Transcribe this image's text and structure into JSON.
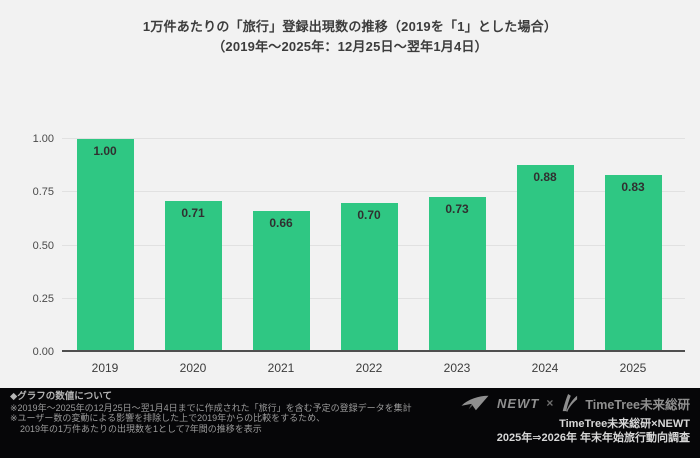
{
  "title": {
    "line1": "1万件あたりの「旅行」登録出現数の推移（2019を「1」とした場合）",
    "line2": "（2019年〜2025年：12月25日〜翌年1月4日）"
  },
  "chart_data": {
    "type": "bar",
    "categories": [
      "2019",
      "2020",
      "2021",
      "2022",
      "2023",
      "2024",
      "2025"
    ],
    "values": [
      1.0,
      0.71,
      0.66,
      0.7,
      0.73,
      0.88,
      0.83
    ],
    "value_labels": [
      "1.00",
      "0.71",
      "0.66",
      "0.70",
      "0.73",
      "0.88",
      "0.83"
    ],
    "title": "1万件あたりの「旅行」登録出現数の推移（2019を「1」とした場合）",
    "subtitle": "（2019年〜2025年：12月25日〜翌年1月4日）",
    "xlabel": "",
    "ylabel": "",
    "ylim": [
      0,
      1.0
    ],
    "yticks": [
      {
        "value": 0.0,
        "label": "0.00"
      },
      {
        "value": 0.25,
        "label": "0.25"
      },
      {
        "value": 0.5,
        "label": "0.50"
      },
      {
        "value": 0.75,
        "label": "0.75"
      },
      {
        "value": 1.0,
        "label": "1.00"
      }
    ],
    "grid": true,
    "legend": "none",
    "bar_color": "#2fc783",
    "label_color": "#303030"
  },
  "footer": {
    "notes": {
      "heading": "◆グラフの数値について",
      "line1": "※2019年〜2025年の12月25日〜翌1月4日までに作成された「旅行」を含む予定の登録データを集計",
      "line2": "※ユーザー数の変動による影響を排除した上で2019年からの比較をするため、",
      "line3": "2019年の1万件あたりの出現数を1として7年間の推移を表示"
    },
    "branding": {
      "newt_label": "NEWT",
      "separator": "×",
      "timetree_label": "TimeTree未来総研",
      "credit_line": "TimeTree未来総研×NEWT",
      "survey_line": "2025年⇒2026年 年末年始旅行動向調査"
    }
  },
  "colors": {
    "background": "#f2f2f2",
    "bar": "#2fc783",
    "footer_background": "#060608",
    "gridline": "#e1e1e1",
    "baseline": "#4f4f4f"
  }
}
